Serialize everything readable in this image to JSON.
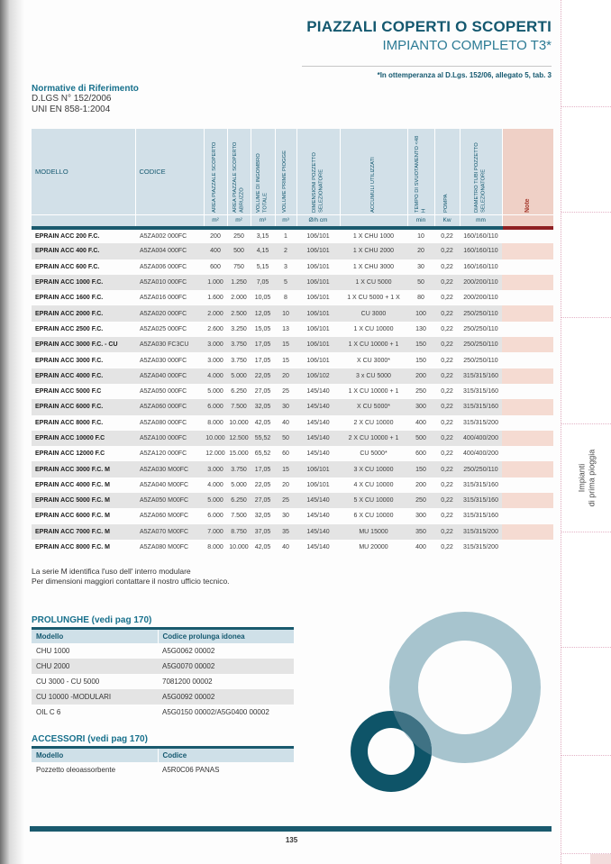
{
  "header": {
    "title_line1": "PIAZZALI COPERTI O SCOPERTI",
    "title_line2": "IMPIANTO COMPLETO T3*",
    "compliance_note": "*In ottemperanza al D.Lgs. 152/06, allegato 5, tab. 3"
  },
  "normative": {
    "heading": "Normative di Riferimento",
    "lines": [
      "D.LGS N° 152/2006",
      "UNI EN 858-1:2004"
    ]
  },
  "main_table": {
    "columns": [
      {
        "label": "MODELLO",
        "unit": ""
      },
      {
        "label": "CODICE",
        "unit": ""
      },
      {
        "label": "AREA PIAZZALE SCOPERTO",
        "unit": "m²"
      },
      {
        "label": "AREA PIAZZALE SCOPERTO ABRUZZO",
        "unit": "m²"
      },
      {
        "label": "VOLUME DI INGOMBRO TOTALE",
        "unit": "m³"
      },
      {
        "label": "VOLUME PRIME PIOGGE",
        "unit": "m³"
      },
      {
        "label": "DIMENSIONI POZZETTO SELEZIONATORE",
        "unit": "Ø/h cm"
      },
      {
        "label": "ACCUMULI UTILIZZATI",
        "unit": ""
      },
      {
        "label": "TEMPO DI SVUOTAMENTO <48 H",
        "unit": "min"
      },
      {
        "label": "POMPA",
        "unit": "Kw"
      },
      {
        "label": "DIAMETRO TUBI POZZETTO SELEZIONATORE",
        "unit": "mm"
      },
      {
        "label": "Note",
        "unit": ""
      }
    ],
    "rows": [
      [
        "EPRAIN ACC 200 F.C.",
        "A5ZA002 000FC",
        "200",
        "250",
        "3,15",
        "1",
        "106/101",
        "1 X CHU 1000",
        "10",
        "0,22",
        "160/160/110"
      ],
      [
        "EPRAIN ACC 400 F.C.",
        "A5ZA004 000FC",
        "400",
        "500",
        "4,15",
        "2",
        "106/101",
        "1 X CHU 2000",
        "20",
        "0,22",
        "160/160/110"
      ],
      [
        "EPRAIN ACC 600 F.C.",
        "A5ZA006 000FC",
        "600",
        "750",
        "5,15",
        "3",
        "106/101",
        "1 X CHU 3000",
        "30",
        "0,22",
        "160/160/110"
      ],
      [
        "EPRAIN ACC 1000 F.C.",
        "A5ZA010 000FC",
        "1.000",
        "1.250",
        "7,05",
        "5",
        "106/101",
        "1 X CU 5000",
        "50",
        "0,22",
        "200/200/110"
      ],
      [
        "EPRAIN ACC 1600 F.C.",
        "A5ZA016 000FC",
        "1.600",
        "2.000",
        "10,05",
        "8",
        "106/101",
        "1 X CU 5000 + 1 X",
        "80",
        "0,22",
        "200/200/110"
      ],
      [
        "EPRAIN ACC 2000 F.C.",
        "A5ZA020 000FC",
        "2.000",
        "2.500",
        "12,05",
        "10",
        "106/101",
        "CU 3000",
        "100",
        "0,22",
        "250/250/110"
      ],
      [
        "EPRAIN ACC 2500 F.C.",
        "A5ZA025 000FC",
        "2.600",
        "3.250",
        "15,05",
        "13",
        "106/101",
        "1 X CU 10000",
        "130",
        "0,22",
        "250/250/110"
      ],
      [
        "EPRAIN ACC 3000 F.C. - CU",
        "A5ZA030 FC3CU",
        "3.000",
        "3.750",
        "17,05",
        "15",
        "106/101",
        "1 X CU 10000 + 1",
        "150",
        "0,22",
        "250/250/110"
      ],
      [
        "EPRAIN ACC 3000 F.C.",
        "A5ZA030 000FC",
        "3.000",
        "3.750",
        "17,05",
        "15",
        "106/101",
        "X CU 3000*",
        "150",
        "0,22",
        "250/250/110"
      ],
      [
        "EPRAIN ACC 4000 F.C.",
        "A5ZA040 000FC",
        "4.000",
        "5.000",
        "22,05",
        "20",
        "106/102",
        "3 x CU 5000",
        "200",
        "0,22",
        "315/315/160"
      ],
      [
        "EPRAIN ACC 5000 F.C",
        "A5ZA050 000FC",
        "5.000",
        "6.250",
        "27,05",
        "25",
        "145/140",
        "1 X CU 10000 + 1",
        "250",
        "0,22",
        "315/315/160"
      ],
      [
        "EPRAIN ACC 6000 F.C.",
        "A5ZA060 000FC",
        "6.000",
        "7.500",
        "32,05",
        "30",
        "145/140",
        "X CU 5000*",
        "300",
        "0,22",
        "315/315/160"
      ],
      [
        "EPRAIN ACC 8000 F.C.",
        "A5ZA080 000FC",
        "8.000",
        "10.000",
        "42,05",
        "40",
        "145/140",
        "2 X CU 10000",
        "400",
        "0,22",
        "315/315/200"
      ],
      [
        "EPRAIN ACC 10000 F.C",
        "A5ZA100 000FC",
        "10.000",
        "12.500",
        "55,52",
        "50",
        "145/140",
        "2 X CU 10000 + 1",
        "500",
        "0,22",
        "400/400/200"
      ],
      [
        "EPRAIN ACC 12000 F.C",
        "A5ZA120 000FC",
        "12.000",
        "15.000",
        "65,52",
        "60",
        "145/140",
        "CU 5000*",
        "600",
        "0,22",
        "400/400/200"
      ],
      [
        "EPRAIN ACC 3000 F.C. M",
        "A5ZA030 M00FC",
        "3.000",
        "3.750",
        "17,05",
        "15",
        "106/101",
        "3 X CU 10000",
        "150",
        "0,22",
        "250/250/110"
      ],
      [
        "EPRAIN ACC 4000 F.C. M",
        "A5ZA040 M00FC",
        "4.000",
        "5.000",
        "22,05",
        "20",
        "106/101",
        "4 X CU 10000",
        "200",
        "0,22",
        "315/315/160"
      ],
      [
        "EPRAIN ACC 5000 F.C. M",
        "A5ZA050 M00FC",
        "5.000",
        "6.250",
        "27,05",
        "25",
        "145/140",
        "5 X CU 10000",
        "250",
        "0,22",
        "315/315/160"
      ],
      [
        "EPRAIN ACC 6000 F.C. M",
        "A5ZA060 M00FC",
        "6.000",
        "7.500",
        "32,05",
        "30",
        "145/140",
        "6 X CU 10000",
        "300",
        "0,22",
        "315/315/160"
      ],
      [
        "EPRAIN ACC 7000 F.C. M",
        "A5ZA070 M00FC",
        "7.000",
        "8.750",
        "37,05",
        "35",
        "145/140",
        "MU 15000",
        "350",
        "0,22",
        "315/315/200"
      ],
      [
        "EPRAIN ACC 8000 F.C. M",
        "A5ZA080 M00FC",
        "8.000",
        "10.000",
        "42,05",
        "40",
        "145/140",
        "MU 20000",
        "400",
        "0,22",
        "315/315/200"
      ]
    ]
  },
  "footnotes": [
    "La serie M identifica l'uso dell' interro modulare",
    "Per dimensioni maggiori contattare il nostro ufficio tecnico."
  ],
  "prolunghe": {
    "heading": "PROLUNGHE (vedi pag 170)",
    "headers": [
      "Modello",
      "Codice prolunga idonea"
    ],
    "rows": [
      [
        "CHU 1000",
        "A5G0062 00002"
      ],
      [
        "CHU 2000",
        "A5G0070 00002"
      ],
      [
        "CU 3000 - CU 5000",
        "7081200 00002"
      ],
      [
        "CU 10000 -MODULARI",
        "A5G0092 00002"
      ],
      [
        "OIL C 6",
        "A5G0150 00002/A5G0400 00002"
      ]
    ]
  },
  "accessori": {
    "heading": "ACCESSORI (vedi pag 170)",
    "headers": [
      "Modello",
      "Codice"
    ],
    "rows": [
      [
        "Pozzetto oleoassorbente",
        "A5R0C06 PANAS"
      ]
    ]
  },
  "sidebar": {
    "label_line1": "Impianti",
    "label_line2": "di prima pioggia"
  },
  "footer": {
    "page_number": "135"
  },
  "colors": {
    "teal_dark": "#1a5a6e",
    "teal_text": "#14586f",
    "header_bg": "#d2e0e8",
    "note_red": "#a63a2e",
    "note_header_bg": "#efd0c6",
    "note_red_bar": "#8e2023",
    "stripe_gray": "#e4e4e4",
    "stripe_pink": "#f5dbd2",
    "ring_light": "#a7c4ce",
    "ring_dark": "#0e5468",
    "ring_overlap": "#3f7284"
  }
}
